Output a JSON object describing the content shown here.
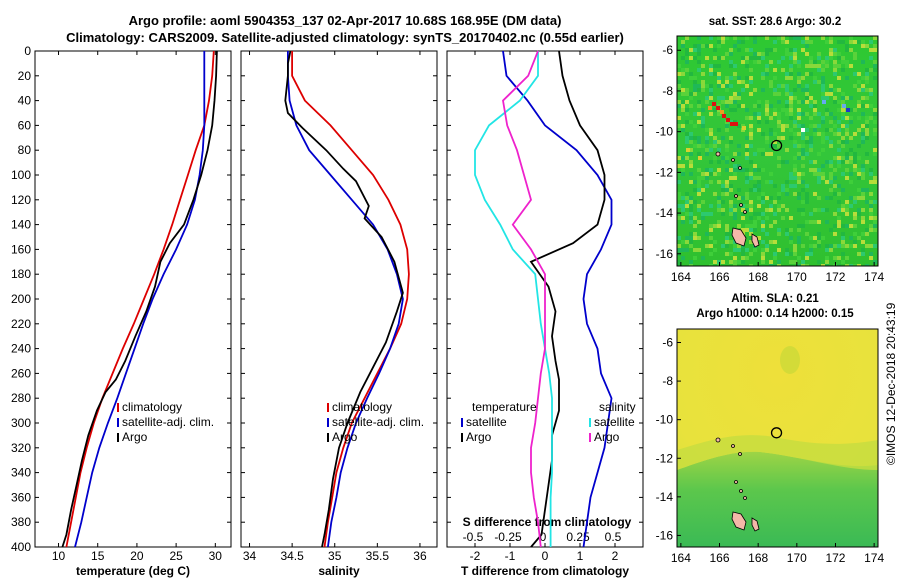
{
  "header": {
    "line1": "Argo profile: aoml 5904353_137 02-Apr-2017 10.68S 168.95E (DM data)",
    "line2": "Climatology: CARS2009. Satellite-adjusted climatology: synTS_20170402.nc (0.55d earlier)"
  },
  "credit": "©IMOS 12-Dec-2018 20:43:19",
  "colors": {
    "climatology": "#dd0000",
    "satellite": "#0000cc",
    "argo": "#000000",
    "sat_salinity": "#22e5e5",
    "argo_salinity": "#ee22cc"
  },
  "chart_data": [
    {
      "id": "temperature",
      "type": "line",
      "xlabel": "temperature (deg C)",
      "ylabel": "",
      "xlim": [
        7,
        32
      ],
      "ylim": [
        400,
        0
      ],
      "xticks": [
        10,
        15,
        20,
        25,
        30
      ],
      "yticks": [
        0,
        20,
        40,
        60,
        80,
        100,
        120,
        140,
        160,
        180,
        200,
        220,
        240,
        260,
        280,
        300,
        320,
        340,
        360,
        380,
        400
      ],
      "legend": [
        "climatology",
        "satellite-adj. clim.",
        "Argo"
      ],
      "series": [
        {
          "name": "climatology",
          "color": "#dd0000",
          "points": [
            [
              29.8,
              0
            ],
            [
              29.6,
              20
            ],
            [
              29.2,
              40
            ],
            [
              28.6,
              60
            ],
            [
              27.5,
              80
            ],
            [
              26.5,
              100
            ],
            [
              25.5,
              120
            ],
            [
              24.5,
              140
            ],
            [
              23.4,
              160
            ],
            [
              22.2,
              180
            ],
            [
              20.9,
              200
            ],
            [
              19.6,
              220
            ],
            [
              18.2,
              240
            ],
            [
              16.9,
              260
            ],
            [
              15.6,
              280
            ],
            [
              14.5,
              300
            ],
            [
              13.6,
              320
            ],
            [
              12.8,
              340
            ],
            [
              12.2,
              360
            ],
            [
              11.6,
              380
            ],
            [
              11.0,
              400
            ]
          ]
        },
        {
          "name": "satellite-adj. clim.",
          "color": "#0000cc",
          "points": [
            [
              28.6,
              0
            ],
            [
              28.6,
              20
            ],
            [
              28.6,
              40
            ],
            [
              28.6,
              60
            ],
            [
              28.4,
              80
            ],
            [
              28.0,
              100
            ],
            [
              27.4,
              120
            ],
            [
              26.4,
              140
            ],
            [
              25.0,
              160
            ],
            [
              23.4,
              180
            ],
            [
              22.0,
              200
            ],
            [
              20.8,
              220
            ],
            [
              19.7,
              240
            ],
            [
              18.6,
              260
            ],
            [
              17.5,
              280
            ],
            [
              16.3,
              300
            ],
            [
              15.2,
              320
            ],
            [
              14.3,
              340
            ],
            [
              13.6,
              360
            ],
            [
              12.9,
              380
            ],
            [
              12.1,
              400
            ]
          ]
        },
        {
          "name": "Argo",
          "color": "#000000",
          "points": [
            [
              30.2,
              0
            ],
            [
              30.1,
              20
            ],
            [
              29.9,
              40
            ],
            [
              29.6,
              60
            ],
            [
              29.0,
              80
            ],
            [
              28.2,
              100
            ],
            [
              27.2,
              120
            ],
            [
              26.0,
              140
            ],
            [
              24.2,
              155
            ],
            [
              23.0,
              170
            ],
            [
              22.3,
              190
            ],
            [
              21.2,
              210
            ],
            [
              19.8,
              230
            ],
            [
              18.5,
              250
            ],
            [
              17.3,
              265
            ],
            [
              16.0,
              275
            ],
            [
              14.9,
              290
            ],
            [
              13.8,
              310
            ],
            [
              13.0,
              330
            ],
            [
              12.3,
              350
            ],
            [
              11.6,
              370
            ],
            [
              11.0,
              390
            ],
            [
              10.5,
              400
            ]
          ]
        }
      ]
    },
    {
      "id": "salinity",
      "type": "line",
      "xlabel": "salinity",
      "ylabel": "",
      "xlim": [
        33.9,
        36.2
      ],
      "ylim": [
        400,
        0
      ],
      "xticks": [
        34,
        34.5,
        35,
        35.5,
        36
      ],
      "xticklabels": [
        "34",
        "34.5",
        "35",
        "35.5",
        "36"
      ],
      "legend": [
        "climatology",
        "satellite-adj. clim.",
        "Argo"
      ],
      "series": [
        {
          "name": "climatology",
          "color": "#dd0000",
          "points": [
            [
              34.5,
              0
            ],
            [
              34.5,
              20
            ],
            [
              34.65,
              40
            ],
            [
              34.95,
              60
            ],
            [
              35.2,
              80
            ],
            [
              35.45,
              100
            ],
            [
              35.63,
              120
            ],
            [
              35.77,
              140
            ],
            [
              35.85,
              160
            ],
            [
              35.87,
              180
            ],
            [
              35.85,
              200
            ],
            [
              35.78,
              220
            ],
            [
              35.65,
              240
            ],
            [
              35.5,
              260
            ],
            [
              35.35,
              280
            ],
            [
              35.2,
              300
            ],
            [
              35.1,
              320
            ],
            [
              35.02,
              340
            ],
            [
              34.97,
              360
            ],
            [
              34.92,
              380
            ],
            [
              34.88,
              400
            ]
          ]
        },
        {
          "name": "satellite-adj. clim.",
          "color": "#0000cc",
          "points": [
            [
              34.45,
              0
            ],
            [
              34.45,
              20
            ],
            [
              34.47,
              40
            ],
            [
              34.55,
              60
            ],
            [
              34.7,
              80
            ],
            [
              34.95,
              100
            ],
            [
              35.2,
              120
            ],
            [
              35.45,
              140
            ],
            [
              35.62,
              160
            ],
            [
              35.73,
              180
            ],
            [
              35.8,
              200
            ],
            [
              35.75,
              220
            ],
            [
              35.65,
              240
            ],
            [
              35.52,
              260
            ],
            [
              35.38,
              280
            ],
            [
              35.25,
              300
            ],
            [
              35.15,
              320
            ],
            [
              35.07,
              340
            ],
            [
              35.02,
              360
            ],
            [
              34.96,
              380
            ],
            [
              34.92,
              400
            ]
          ]
        },
        {
          "name": "Argo",
          "color": "#000000",
          "points": [
            [
              34.48,
              0
            ],
            [
              34.45,
              10
            ],
            [
              34.45,
              20
            ],
            [
              34.42,
              40
            ],
            [
              34.45,
              50
            ],
            [
              34.62,
              62
            ],
            [
              34.9,
              80
            ],
            [
              35.1,
              95
            ],
            [
              35.25,
              105
            ],
            [
              35.4,
              125
            ],
            [
              35.35,
              135
            ],
            [
              35.55,
              150
            ],
            [
              35.7,
              170
            ],
            [
              35.8,
              195
            ],
            [
              35.73,
              210
            ],
            [
              35.6,
              235
            ],
            [
              35.45,
              255
            ],
            [
              35.3,
              275
            ],
            [
              35.15,
              300
            ],
            [
              35.05,
              320
            ],
            [
              34.98,
              345
            ],
            [
              34.93,
              370
            ],
            [
              34.88,
              390
            ],
            [
              34.85,
              400
            ]
          ]
        }
      ]
    },
    {
      "id": "difference",
      "type": "line",
      "xlabel": "T difference from climatology",
      "x2label": "S difference from climatology",
      "ylabel": "",
      "xlim": [
        -2.8,
        2.8
      ],
      "ylim": [
        400,
        0
      ],
      "xticks": [
        -2,
        -1,
        0,
        1,
        2
      ],
      "x2ticks": [
        -0.5,
        -0.25,
        0,
        0.25,
        0.5
      ],
      "x2ticklabels": [
        "-0.5",
        "-0.25",
        "0",
        "0.25",
        "0.5"
      ],
      "legend": [
        "temperature",
        "satellite",
        "Argo",
        "salinity",
        "satellite",
        "Argo"
      ],
      "series": [
        {
          "name": "T satellite",
          "color": "#0000cc",
          "points": [
            [
              -1.2,
              0
            ],
            [
              -1.1,
              20
            ],
            [
              -0.5,
              40
            ],
            [
              0,
              60
            ],
            [
              0.9,
              80
            ],
            [
              1.5,
              100
            ],
            [
              1.9,
              120
            ],
            [
              1.9,
              140
            ],
            [
              1.6,
              160
            ],
            [
              1.2,
              180
            ],
            [
              1.1,
              200
            ],
            [
              1.2,
              220
            ],
            [
              1.5,
              240
            ],
            [
              1.6,
              260
            ],
            [
              1.9,
              280
            ],
            [
              1.8,
              300
            ],
            [
              1.7,
              320
            ],
            [
              1.5,
              340
            ],
            [
              1.3,
              360
            ],
            [
              1.2,
              380
            ],
            [
              1.1,
              400
            ]
          ]
        },
        {
          "name": "T Argo",
          "color": "#000000",
          "points": [
            [
              0.4,
              0
            ],
            [
              0.5,
              20
            ],
            [
              0.7,
              40
            ],
            [
              1.0,
              60
            ],
            [
              1.5,
              80
            ],
            [
              1.7,
              100
            ],
            [
              1.7,
              120
            ],
            [
              1.5,
              140
            ],
            [
              0.8,
              155
            ],
            [
              -0.4,
              170
            ],
            [
              0.1,
              190
            ],
            [
              0.3,
              210
            ],
            [
              0.2,
              230
            ],
            [
              0.3,
              250
            ],
            [
              0.4,
              265
            ],
            [
              0.4,
              275
            ],
            [
              0.4,
              290
            ],
            [
              0.2,
              310
            ],
            [
              0.2,
              330
            ],
            [
              0.1,
              350
            ],
            [
              0.0,
              370
            ],
            [
              -0.1,
              390
            ],
            [
              -0.4,
              400
            ]
          ]
        },
        {
          "name": "S satellite",
          "color": "#22e5e5",
          "points": [
            [
              -0.05,
              0
            ],
            [
              -0.05,
              20
            ],
            [
              -0.18,
              40
            ],
            [
              -0.4,
              60
            ],
            [
              -0.5,
              80
            ],
            [
              -0.5,
              100
            ],
            [
              -0.43,
              120
            ],
            [
              -0.32,
              140
            ],
            [
              -0.23,
              160
            ],
            [
              -0.07,
              180
            ],
            [
              -0.05,
              200
            ],
            [
              -0.03,
              220
            ],
            [
              0.0,
              240
            ],
            [
              0.03,
              260
            ],
            [
              0.05,
              280
            ],
            [
              0.05,
              300
            ],
            [
              0.05,
              320
            ],
            [
              0.05,
              340
            ],
            [
              0.04,
              360
            ],
            [
              0.04,
              380
            ],
            [
              0.04,
              400
            ]
          ]
        },
        {
          "name": "S Argo",
          "color": "#ee22cc",
          "points": [
            [
              -0.05,
              0
            ],
            [
              -0.12,
              20
            ],
            [
              -0.3,
              40
            ],
            [
              -0.27,
              60
            ],
            [
              -0.2,
              80
            ],
            [
              -0.15,
              100
            ],
            [
              -0.1,
              120
            ],
            [
              -0.23,
              140
            ],
            [
              -0.1,
              160
            ],
            [
              0.0,
              180
            ],
            [
              0.0,
              200
            ],
            [
              0.0,
              220
            ],
            [
              0.0,
              240
            ],
            [
              -0.03,
              260
            ],
            [
              -0.05,
              280
            ],
            [
              -0.07,
              300
            ],
            [
              -0.1,
              320
            ],
            [
              -0.1,
              340
            ],
            [
              -0.08,
              360
            ],
            [
              -0.05,
              380
            ],
            [
              -0.03,
              400
            ]
          ]
        }
      ]
    },
    {
      "id": "sst_map",
      "type": "heatmap",
      "title": "sat. SST: 28.6 Argo: 30.2",
      "xticks": [
        164,
        166,
        168,
        170,
        172,
        174
      ],
      "yticks": [
        -6,
        -8,
        -10,
        -12,
        -14,
        -16
      ],
      "xlim": [
        163.8,
        174.2
      ],
      "ylim": [
        -16.6,
        -5.3
      ],
      "argo_position": [
        168.95,
        -10.68
      ]
    },
    {
      "id": "sla_map",
      "type": "heatmap",
      "title": "Altim. SLA: 0.21",
      "subtitle": "Argo h1000: 0.14 h2000: 0.15",
      "xticks": [
        164,
        166,
        168,
        170,
        172,
        174
      ],
      "yticks": [
        -6,
        -8,
        -10,
        -12,
        -14,
        -16
      ],
      "xlim": [
        163.8,
        174.2
      ],
      "ylim": [
        -16.6,
        -5.3
      ],
      "argo_position": [
        168.95,
        -10.68
      ]
    }
  ]
}
